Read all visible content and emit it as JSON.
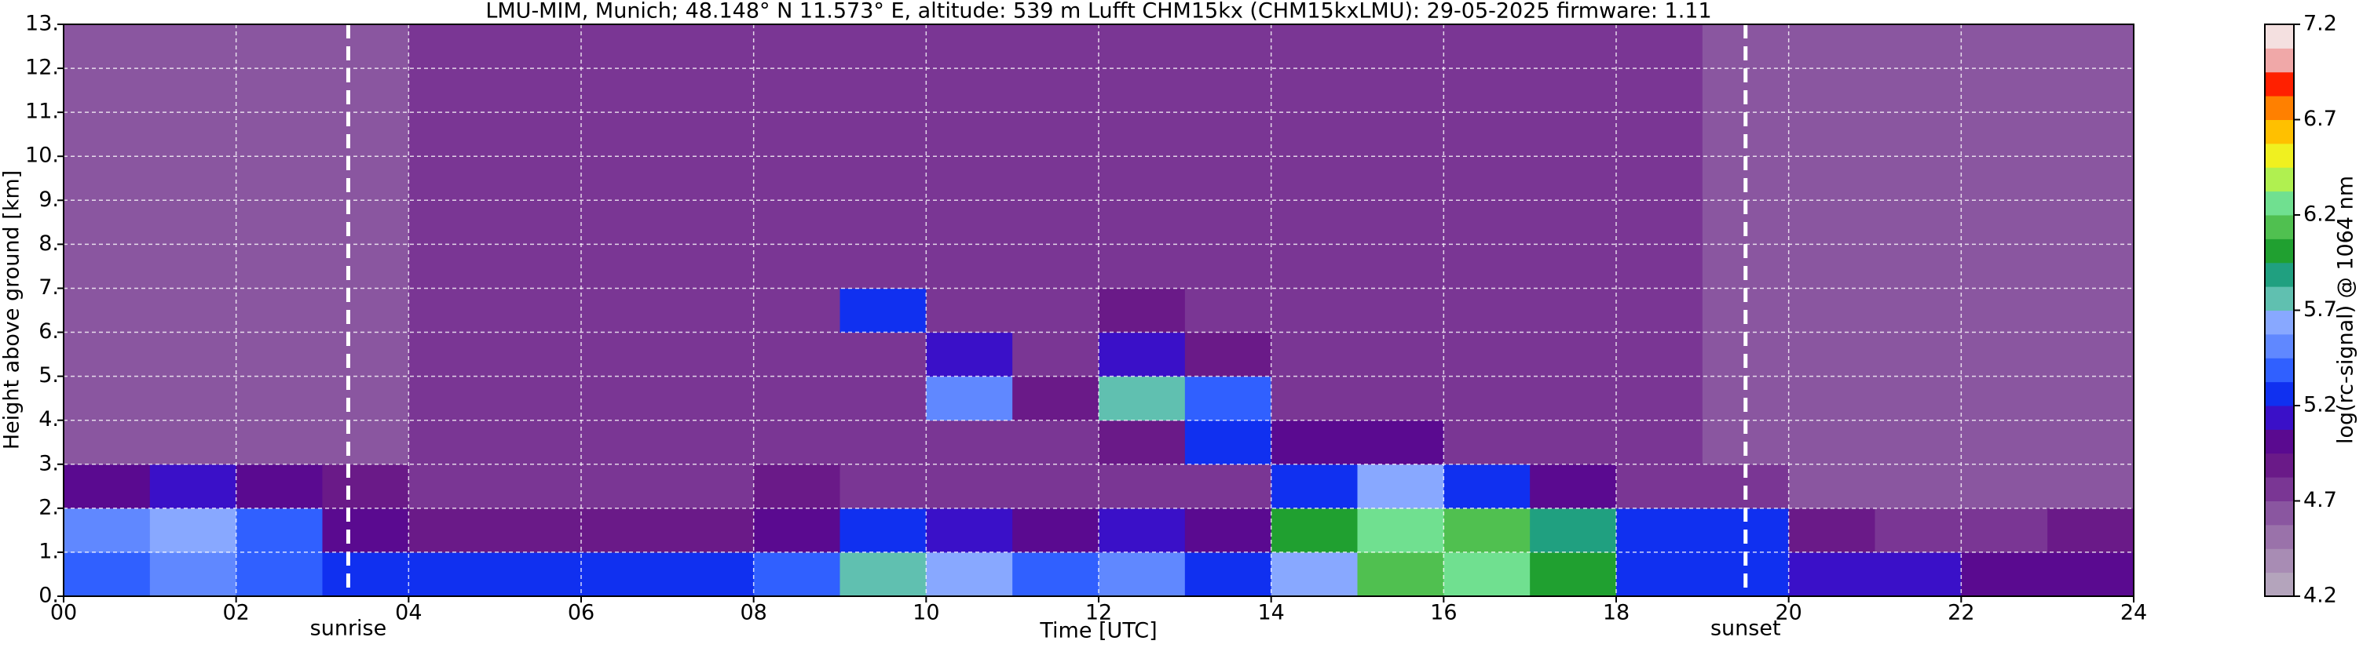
{
  "chart_data": {
    "type": "heatmap",
    "title": "LMU-MIM, Munich; 48.148° N 11.573° E, altitude: 539 m    Lufft CHM15kx (CHM15kxLMU): 29-05-2025    firmware: 1.11",
    "x_label": "Time [UTC]",
    "y_label": "Height above ground [km]",
    "colorbar_label": "log(rc-signal) @ 1064 nm",
    "xlim": [
      0,
      24
    ],
    "xticks": [
      {
        "value": 0,
        "label": "00"
      },
      {
        "value": 2,
        "label": "02"
      },
      {
        "value": 4,
        "label": "04"
      },
      {
        "value": 6,
        "label": "06"
      },
      {
        "value": 8,
        "label": "08"
      },
      10,
      12,
      14,
      16,
      18,
      20,
      22,
      24
    ],
    "ylim": [
      0,
      13
    ],
    "yticks": [
      {
        "value": 0,
        "label": "0."
      },
      {
        "value": 1,
        "label": "1."
      },
      {
        "value": 2,
        "label": "2."
      },
      {
        "value": 3,
        "label": "3."
      },
      {
        "value": 4,
        "label": "4."
      },
      {
        "value": 5,
        "label": "5."
      },
      {
        "value": 6,
        "label": "6."
      },
      {
        "value": 7,
        "label": "7."
      },
      {
        "value": 8,
        "label": "8."
      },
      {
        "value": 9,
        "label": "9."
      },
      {
        "value": 10,
        "label": "10."
      },
      {
        "value": 11,
        "label": "11."
      },
      {
        "value": 12,
        "label": "12."
      },
      {
        "value": 13,
        "label": "13."
      }
    ],
    "clim": [
      4.2,
      7.2
    ],
    "cticks": [
      4.2,
      4.7,
      5.2,
      5.7,
      6.2,
      6.7,
      7.2
    ],
    "colormap": [
      "#b4a4bc",
      "#a88cb4",
      "#9a72aa",
      "#8a56a0",
      "#7a3694",
      "#6a1a88",
      "#5a0a90",
      "#3a10c8",
      "#1030f0",
      "#3060ff",
      "#6088ff",
      "#88a8ff",
      "#60c0b0",
      "#20a080",
      "#20a030",
      "#50c050",
      "#70e090",
      "#b0f050",
      "#f0f020",
      "#ffc000",
      "#ff8000",
      "#ff2000",
      "#f0a8a8",
      "#f4e0e0"
    ],
    "grid": true,
    "x": [
      0.5,
      1.5,
      2.5,
      3.5,
      4.5,
      5.5,
      6.5,
      7.5,
      8.5,
      9.5,
      10.5,
      11.5,
      12.5,
      13.5,
      14.5,
      15.5,
      16.5,
      17.5,
      18.5,
      19.5,
      20.5,
      21.5,
      22.5,
      23.5
    ],
    "y": [
      0.5,
      1.5,
      2.5,
      3.5,
      4.5,
      5.5,
      6.5,
      7.5,
      8.5,
      9.5,
      10.5,
      11.5,
      12.5
    ],
    "z": [
      [
        5.4,
        5.5,
        5.4,
        5.3,
        5.3,
        5.3,
        5.3,
        5.3,
        5.4,
        5.8,
        5.6,
        5.4,
        5.5,
        5.3,
        5.6,
        6.1,
        6.2,
        6.0,
        5.3,
        5.2,
        5.1,
        5.1,
        5.0,
        5.0
      ],
      [
        5.5,
        5.6,
        5.4,
        5.0,
        4.9,
        4.9,
        4.9,
        4.9,
        5.0,
        5.3,
        5.1,
        5.0,
        5.1,
        5.0,
        6.0,
        6.3,
        6.1,
        5.9,
        5.3,
        5.2,
        4.9,
        4.8,
        4.8,
        4.9
      ],
      [
        5.0,
        5.1,
        5.0,
        4.9,
        4.8,
        4.8,
        4.8,
        4.8,
        4.9,
        4.8,
        4.8,
        4.8,
        4.8,
        4.8,
        5.2,
        5.6,
        5.3,
        5.0,
        4.7,
        4.7,
        4.6,
        4.6,
        4.6,
        4.6
      ],
      [
        4.6,
        4.6,
        4.6,
        4.6,
        4.7,
        4.7,
        4.7,
        4.7,
        4.8,
        4.8,
        4.8,
        4.8,
        4.9,
        5.3,
        5.0,
        5.0,
        4.8,
        4.8,
        4.7,
        4.6,
        4.6,
        4.6,
        4.6,
        4.6
      ],
      [
        4.6,
        4.6,
        4.6,
        4.6,
        4.7,
        4.7,
        4.7,
        4.8,
        4.8,
        4.8,
        5.5,
        4.9,
        5.8,
        5.4,
        4.8,
        4.8,
        4.8,
        4.8,
        4.7,
        4.6,
        4.6,
        4.6,
        4.6,
        4.6
      ],
      [
        4.6,
        4.6,
        4.6,
        4.6,
        4.7,
        4.7,
        4.7,
        4.8,
        4.8,
        4.8,
        5.1,
        4.8,
        5.1,
        4.9,
        4.8,
        4.8,
        4.8,
        4.8,
        4.7,
        4.6,
        4.6,
        4.6,
        4.6,
        4.6
      ],
      [
        4.6,
        4.6,
        4.6,
        4.6,
        4.7,
        4.7,
        4.7,
        4.8,
        4.8,
        5.2,
        4.8,
        4.8,
        4.9,
        4.8,
        4.8,
        4.8,
        4.8,
        4.8,
        4.7,
        4.6,
        4.6,
        4.6,
        4.6,
        4.6
      ],
      [
        4.6,
        4.6,
        4.6,
        4.6,
        4.7,
        4.7,
        4.7,
        4.8,
        4.8,
        4.8,
        4.8,
        4.8,
        4.8,
        4.8,
        4.8,
        4.8,
        4.8,
        4.7,
        4.7,
        4.6,
        4.6,
        4.6,
        4.6,
        4.6
      ],
      [
        4.6,
        4.6,
        4.6,
        4.6,
        4.7,
        4.7,
        4.7,
        4.8,
        4.8,
        4.8,
        4.8,
        4.8,
        4.8,
        4.8,
        4.8,
        4.8,
        4.8,
        4.7,
        4.7,
        4.6,
        4.6,
        4.6,
        4.6,
        4.6
      ],
      [
        4.6,
        4.6,
        4.6,
        4.6,
        4.7,
        4.7,
        4.7,
        4.8,
        4.8,
        4.8,
        4.8,
        4.8,
        4.8,
        4.8,
        4.8,
        4.8,
        4.8,
        4.7,
        4.7,
        4.6,
        4.6,
        4.6,
        4.6,
        4.6
      ],
      [
        4.6,
        4.6,
        4.6,
        4.6,
        4.7,
        4.7,
        4.7,
        4.8,
        4.8,
        4.8,
        4.8,
        4.8,
        4.8,
        4.8,
        4.8,
        4.8,
        4.8,
        4.7,
        4.7,
        4.6,
        4.6,
        4.6,
        4.6,
        4.6
      ],
      [
        4.6,
        4.6,
        4.6,
        4.6,
        4.7,
        4.7,
        4.7,
        4.8,
        4.8,
        4.8,
        4.8,
        4.8,
        4.8,
        4.8,
        4.8,
        4.8,
        4.8,
        4.7,
        4.7,
        4.6,
        4.6,
        4.6,
        4.6,
        4.6
      ],
      [
        4.6,
        4.6,
        4.6,
        4.6,
        4.7,
        4.7,
        4.7,
        4.8,
        4.8,
        4.8,
        4.8,
        4.8,
        4.8,
        4.8,
        4.8,
        4.8,
        4.8,
        4.7,
        4.7,
        4.6,
        4.6,
        4.6,
        4.6,
        4.6
      ]
    ],
    "annotations": [
      {
        "x": 3.3,
        "label": "sunrise"
      },
      {
        "x": 19.5,
        "label": "sunset"
      }
    ]
  }
}
